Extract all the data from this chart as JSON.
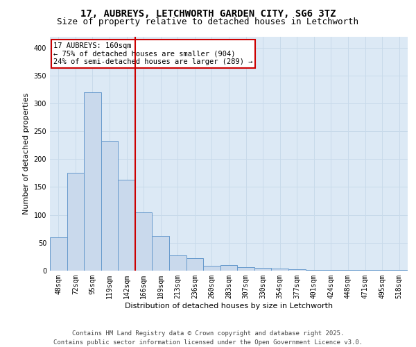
{
  "title_line1": "17, AUBREYS, LETCHWORTH GARDEN CITY, SG6 3TZ",
  "title_line2": "Size of property relative to detached houses in Letchworth",
  "xlabel": "Distribution of detached houses by size in Letchworth",
  "ylabel": "Number of detached properties",
  "bar_labels": [
    "48sqm",
    "72sqm",
    "95sqm",
    "119sqm",
    "142sqm",
    "166sqm",
    "189sqm",
    "213sqm",
    "236sqm",
    "260sqm",
    "283sqm",
    "307sqm",
    "330sqm",
    "354sqm",
    "377sqm",
    "401sqm",
    "424sqm",
    "448sqm",
    "471sqm",
    "495sqm",
    "518sqm"
  ],
  "bar_values": [
    60,
    175,
    320,
    233,
    163,
    105,
    62,
    27,
    23,
    9,
    10,
    6,
    5,
    4,
    2,
    1,
    1,
    1,
    1,
    1,
    1
  ],
  "bar_color": "#c9d9ec",
  "bar_edgecolor": "#6699cc",
  "vline_pos": 4.5,
  "vline_color": "#cc0000",
  "annotation_text": "17 AUBREYS: 160sqm\n← 75% of detached houses are smaller (904)\n24% of semi-detached houses are larger (289) →",
  "annotation_box_color": "#cc0000",
  "ylim": [
    0,
    420
  ],
  "yticks": [
    0,
    50,
    100,
    150,
    200,
    250,
    300,
    350,
    400
  ],
  "grid_color": "#c8daea",
  "background_color": "#dce9f5",
  "footer_line1": "Contains HM Land Registry data © Crown copyright and database right 2025.",
  "footer_line2": "Contains public sector information licensed under the Open Government Licence v3.0.",
  "title_fontsize": 10,
  "subtitle_fontsize": 9,
  "axis_label_fontsize": 8,
  "tick_fontsize": 7,
  "annotation_fontsize": 7.5,
  "footer_fontsize": 6.5
}
